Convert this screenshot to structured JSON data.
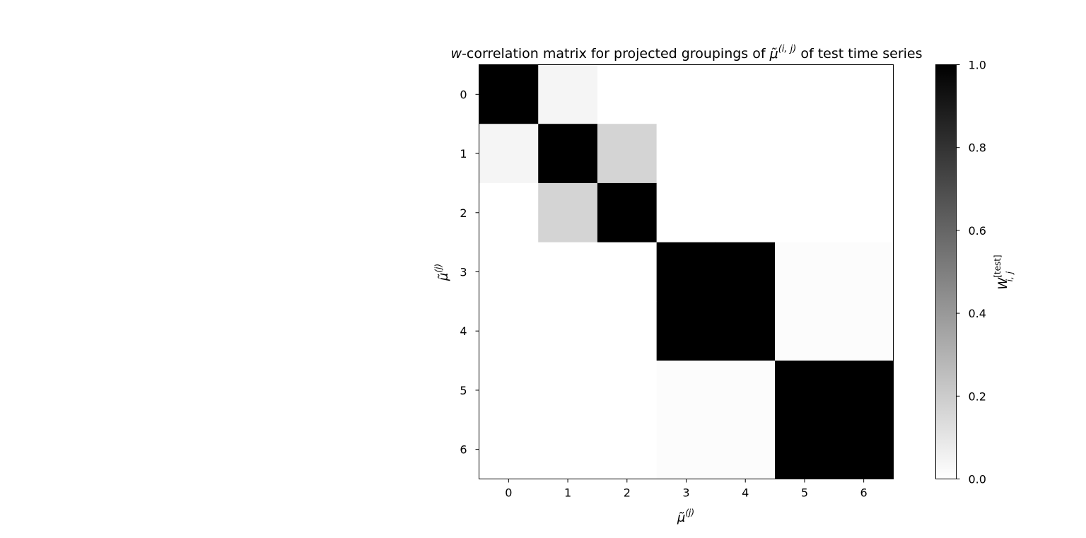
{
  "chart_data": {
    "type": "heatmap",
    "title": {
      "prefix": "w",
      "middle": "-correlation matrix for projected groupings of ",
      "symbol": "μ̃",
      "superscript": "(i, j)",
      "suffix": " of test time series"
    },
    "xlabel": {
      "symbol": "μ̃",
      "superscript": "(j)"
    },
    "ylabel": {
      "symbol": "μ̃",
      "superscript": "(j)"
    },
    "x_ticks": [
      "0",
      "1",
      "2",
      "3",
      "4",
      "5",
      "6"
    ],
    "y_ticks": [
      "0",
      "1",
      "2",
      "3",
      "4",
      "5",
      "6"
    ],
    "colormap": "Greys",
    "vmin": 0.0,
    "vmax": 1.0,
    "matrix": [
      [
        1.0,
        0.04,
        0.0,
        0.0,
        0.0,
        0.0,
        0.0
      ],
      [
        0.04,
        1.0,
        0.17,
        0.0,
        0.0,
        0.0,
        0.0
      ],
      [
        0.0,
        0.17,
        1.0,
        0.0,
        0.0,
        0.0,
        0.0
      ],
      [
        0.0,
        0.0,
        0.0,
        1.0,
        1.0,
        0.01,
        0.01
      ],
      [
        0.0,
        0.0,
        0.0,
        1.0,
        1.0,
        0.01,
        0.01
      ],
      [
        0.0,
        0.0,
        0.0,
        0.01,
        0.01,
        1.0,
        1.0
      ],
      [
        0.0,
        0.0,
        0.0,
        0.01,
        0.01,
        1.0,
        1.0
      ]
    ],
    "colorbar": {
      "ticks": [
        "0.0",
        "0.2",
        "0.4",
        "0.6",
        "0.8",
        "1.0"
      ],
      "tick_values": [
        0.0,
        0.2,
        0.4,
        0.6,
        0.8,
        1.0
      ],
      "label": {
        "symbol": "W",
        "superscript": "[test]",
        "subscript": "i, j"
      }
    }
  }
}
